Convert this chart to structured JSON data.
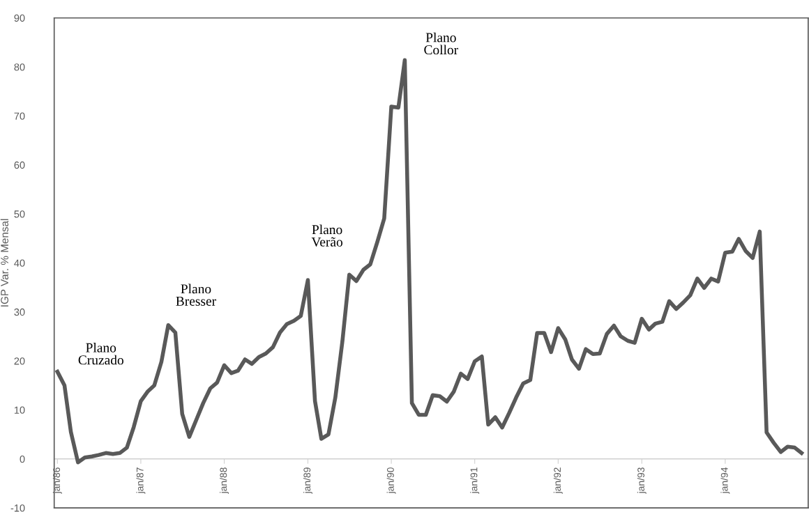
{
  "chart_data": {
    "type": "line",
    "ylabel": "IGP Var. % Mensal",
    "x": [
      "1986-01",
      "1986-02",
      "1986-03",
      "1986-04",
      "1986-05",
      "1986-06",
      "1986-07",
      "1986-08",
      "1986-09",
      "1986-10",
      "1986-11",
      "1986-12",
      "1987-01",
      "1987-02",
      "1987-03",
      "1987-04",
      "1987-05",
      "1987-06",
      "1987-07",
      "1987-08",
      "1987-09",
      "1987-10",
      "1987-11",
      "1987-12",
      "1988-01",
      "1988-02",
      "1988-03",
      "1988-04",
      "1988-05",
      "1988-06",
      "1988-07",
      "1988-08",
      "1988-09",
      "1988-10",
      "1988-11",
      "1988-12",
      "1989-01",
      "1989-02",
      "1989-03",
      "1989-04",
      "1989-05",
      "1989-06",
      "1989-07",
      "1989-08",
      "1989-09",
      "1989-10",
      "1989-11",
      "1989-12",
      "1990-01",
      "1990-02",
      "1990-03",
      "1990-04",
      "1990-05",
      "1990-06",
      "1990-07",
      "1990-08",
      "1990-09",
      "1990-10",
      "1990-11",
      "1990-12",
      "1991-01",
      "1991-02",
      "1991-03",
      "1991-04",
      "1991-05",
      "1991-06",
      "1991-07",
      "1991-08",
      "1991-09",
      "1991-10",
      "1991-11",
      "1991-12",
      "1992-01",
      "1992-02",
      "1992-03",
      "1992-04",
      "1992-05",
      "1992-06",
      "1992-07",
      "1992-08",
      "1992-09",
      "1992-10",
      "1992-11",
      "1992-12",
      "1993-01",
      "1993-02",
      "1993-03",
      "1993-04",
      "1993-05",
      "1993-06",
      "1993-07",
      "1993-08",
      "1993-09",
      "1993-10",
      "1993-11",
      "1993-12",
      "1994-01",
      "1994-02",
      "1994-03",
      "1994-04",
      "1994-05",
      "1994-06",
      "1994-07",
      "1994-08",
      "1994-09",
      "1994-10",
      "1994-11",
      "1994-12"
    ],
    "series": [
      {
        "color": "#595959",
        "values": [
          17.8,
          15.0,
          5.5,
          -0.7,
          0.3,
          0.5,
          0.8,
          1.2,
          1.0,
          1.2,
          2.3,
          6.5,
          11.8,
          13.8,
          15.0,
          19.8,
          27.3,
          25.8,
          9.2,
          4.5,
          8.0,
          11.4,
          14.4,
          15.6,
          19.1,
          17.5,
          18.0,
          20.3,
          19.4,
          20.8,
          21.5,
          22.8,
          25.8,
          27.5,
          28.2,
          29.2,
          36.5,
          11.8,
          4.1,
          5.0,
          12.5,
          24.0,
          37.6,
          36.3,
          38.6,
          39.7,
          44.3,
          49.1,
          71.9,
          71.7,
          81.4,
          11.4,
          9.0,
          9.0,
          13.0,
          12.8,
          11.7,
          13.7,
          17.4,
          16.3,
          19.9,
          20.9,
          7.0,
          8.5,
          6.4,
          9.4,
          12.5,
          15.4,
          16.1,
          25.7,
          25.7,
          21.8,
          26.7,
          24.4,
          20.3,
          18.4,
          22.4,
          21.4,
          21.5,
          25.5,
          27.2,
          25.0,
          24.1,
          23.7,
          28.6,
          26.4,
          27.6,
          28.0,
          32.2,
          30.6,
          31.9,
          33.4,
          36.8,
          34.9,
          36.8,
          36.2,
          42.1,
          42.3,
          44.9,
          42.4,
          41.0,
          46.4,
          5.4,
          3.3,
          1.4,
          2.5,
          2.3,
          1.2
        ]
      }
    ],
    "xlim": [
      "1985-12-18",
      "1994-12-30"
    ],
    "xticks": [
      {
        "value": "1986-01",
        "label": "jan/86"
      },
      {
        "value": "1987-01",
        "label": "jan/87"
      },
      {
        "value": "1988-01",
        "label": "jan/88"
      },
      {
        "value": "1989-01",
        "label": "jan/89"
      },
      {
        "value": "1990-01",
        "label": "jan/90"
      },
      {
        "value": "1991-01",
        "label": "jan/91"
      },
      {
        "value": "1992-01",
        "label": "jan/92"
      },
      {
        "value": "1993-01",
        "label": "jan/93"
      },
      {
        "value": "1994-01",
        "label": "jan/94"
      }
    ],
    "ylim": [
      -10,
      90
    ],
    "yticks": [
      -10,
      0,
      10,
      20,
      30,
      40,
      50,
      60,
      70,
      80,
      90
    ],
    "marker": "none",
    "line_style": "solid",
    "grid": false,
    "legend": false,
    "annotations": [
      "Plano\nCruzado",
      "Plano\nBresser",
      "Plano\nVerão",
      "Plano\nCollor"
    ]
  }
}
